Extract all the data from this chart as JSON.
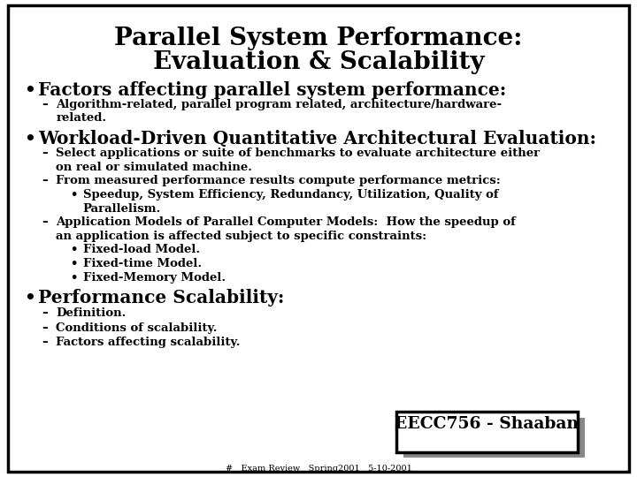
{
  "title_line1": "Parallel System Performance:",
  "title_line2": "Evaluation & Scalability",
  "bg_color": "#ffffff",
  "border_color": "#000000",
  "text_color": "#000000",
  "footer_label": "EECC756 - Shaaban",
  "footer_sub": "#   Exam Review   Spring2001   5-10-2001",
  "figsize": [
    7.2,
    5.4
  ],
  "dpi": 100
}
